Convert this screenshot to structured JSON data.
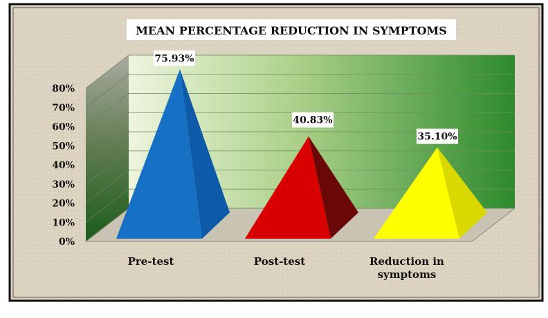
{
  "chart_data": {
    "type": "bar",
    "style": "3d-pyramid",
    "title": "MEAN PERCENTAGE REDUCTION IN SYMPTOMS",
    "xlabel": "",
    "ylabel": "",
    "categories": [
      "Pre-test",
      "Post-test",
      "Reduction in symptoms"
    ],
    "category_lines": [
      [
        "Pre-test"
      ],
      [
        "Post-test"
      ],
      [
        "Reduction in",
        "symptoms"
      ]
    ],
    "values": [
      75.93,
      40.83,
      35.1
    ],
    "data_labels": [
      "75.93%",
      "40.83%",
      "35.10%"
    ],
    "ylim": [
      0,
      80
    ],
    "yticks": [
      0,
      10,
      20,
      30,
      40,
      50,
      60,
      70,
      80
    ],
    "ytick_labels": [
      "0%",
      "10%",
      "20%",
      "30%",
      "40%",
      "50%",
      "60%",
      "70%",
      "80%"
    ],
    "grid": true,
    "legend": "none",
    "colors": {
      "background": "#ddd3c1",
      "frame": "#111111",
      "bars": [
        "#1670c4",
        "#d80000",
        "#ffff00"
      ],
      "bars_dark": [
        "#0d5aa8",
        "#6a0808",
        "#d9d900"
      ],
      "wall_light": "#eef5df",
      "wall_dark": "#2d8a2d",
      "side_wall_light": "#a9aa9f",
      "side_wall_dark": "#1a5c1a"
    }
  }
}
